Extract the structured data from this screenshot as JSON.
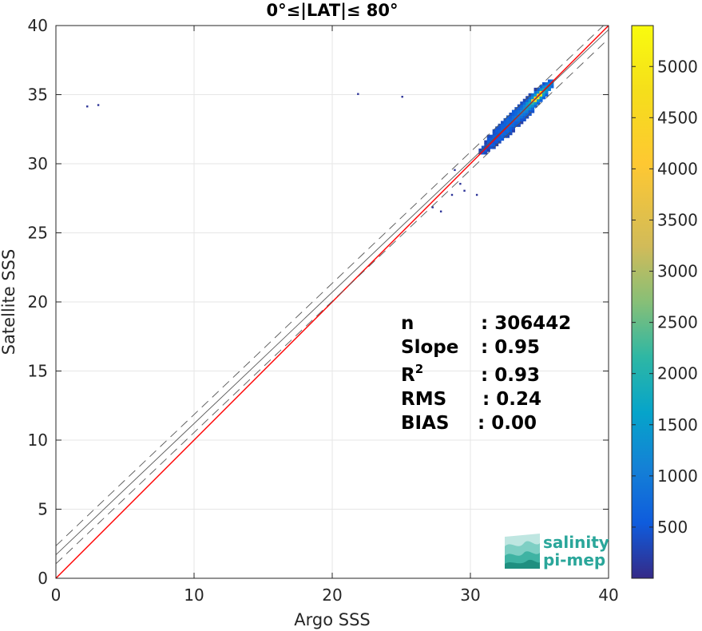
{
  "chart_data": {
    "type": "heatmap",
    "title": "0°≤|LAT|≤ 80°",
    "xlabel": "Argo SSS",
    "ylabel": "Satellite SSS",
    "xlim": [
      0,
      40
    ],
    "ylim": [
      0,
      40
    ],
    "xticks": [
      0,
      10,
      20,
      30,
      40
    ],
    "yticks": [
      0,
      5,
      10,
      15,
      20,
      25,
      30,
      35,
      40
    ],
    "grid": true,
    "colorbar": {
      "colormap": "parula",
      "range": [
        0,
        5400
      ],
      "ticks": [
        500,
        1000,
        1500,
        2000,
        2500,
        3000,
        3500,
        4000,
        4500,
        5000
      ]
    },
    "density_core": {
      "x_range": [
        30,
        36
      ],
      "y_range": [
        30,
        36
      ],
      "peak_x": 34.8,
      "peak_y": 34.8,
      "peak_count": 5300
    },
    "outliers": [
      {
        "x": 2.2,
        "y": 34.1
      },
      {
        "x": 3.0,
        "y": 34.2
      },
      {
        "x": 21.8,
        "y": 35.0
      },
      {
        "x": 25.0,
        "y": 34.8
      },
      {
        "x": 27.8,
        "y": 26.5
      },
      {
        "x": 27.2,
        "y": 26.8
      },
      {
        "x": 28.6,
        "y": 27.7
      },
      {
        "x": 29.2,
        "y": 28.5
      },
      {
        "x": 30.4,
        "y": 27.7
      },
      {
        "x": 28.8,
        "y": 29.5
      },
      {
        "x": 29.5,
        "y": 28.0
      }
    ],
    "lines": [
      {
        "kind": "identity",
        "color": "#ff0000",
        "slope": 1,
        "intercept": 0
      },
      {
        "kind": "fit",
        "color": "#555555",
        "slope": 0.95,
        "intercept": 1.7
      },
      {
        "kind": "fit-upper",
        "color": "#555555",
        "dash": true,
        "slope": 0.95,
        "intercept": 2.35
      },
      {
        "kind": "fit-lower",
        "color": "#555555",
        "dash": true,
        "slope": 0.95,
        "intercept": 1.05
      }
    ],
    "stats": [
      {
        "label": "n",
        "value": ": 306442"
      },
      {
        "label": "Slope",
        "value": ": 0.95"
      },
      {
        "label": "R",
        "sup": "2",
        "value": ": 0.93"
      },
      {
        "label": "RMS",
        "value": ": 0.24"
      },
      {
        "label": "BIAS",
        "value": ": 0.00"
      }
    ]
  },
  "logo": {
    "line1": "salinity",
    "line2": "pi-mep",
    "color": "#2aa69a"
  }
}
